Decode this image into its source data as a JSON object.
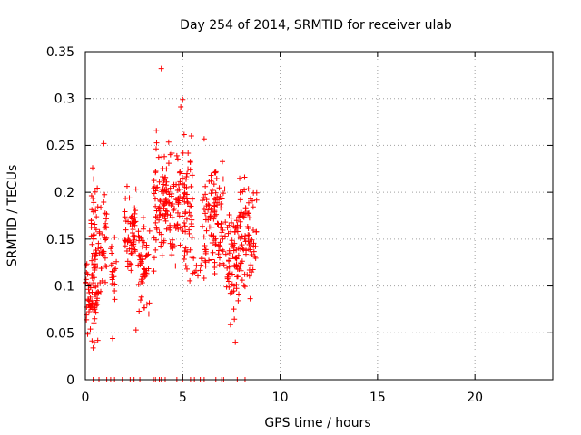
{
  "chart_data": {
    "type": "scatter",
    "title": "Day 254 of 2014, SRMTID for receiver ulab",
    "xlabel": "GPS time / hours",
    "ylabel": "SRMTID / TECUs",
    "xlim": [
      0,
      24
    ],
    "ylim": [
      0,
      0.35
    ],
    "xticks": [
      "0",
      "5",
      "10",
      "15",
      "20"
    ],
    "yticks": [
      "0",
      "0.05",
      "0.1",
      "0.15",
      "0.2",
      "0.25",
      "0.3",
      "0.35"
    ],
    "grid": true,
    "marker": "plus",
    "color": "#ff0000",
    "clusters": [
      {
        "x_start": 0.0,
        "x_end": 0.7,
        "y_min": 0.03,
        "y_max": 0.15,
        "n": 70
      },
      {
        "x_start": 0.3,
        "x_end": 1.1,
        "y_min": 0.05,
        "y_max": 0.25,
        "n": 70
      },
      {
        "x_start": 1.3,
        "x_end": 1.6,
        "y_min": 0.04,
        "y_max": 0.19,
        "n": 20
      },
      {
        "x_start": 2.0,
        "x_end": 2.6,
        "y_min": 0.09,
        "y_max": 0.22,
        "n": 60
      },
      {
        "x_start": 2.7,
        "x_end": 3.3,
        "y_min": 0.05,
        "y_max": 0.2,
        "n": 55
      },
      {
        "x_start": 3.5,
        "x_end": 4.3,
        "y_min": 0.1,
        "y_max": 0.28,
        "n": 90
      },
      {
        "x_start": 4.3,
        "x_end": 5.5,
        "y_min": 0.06,
        "y_max": 0.3,
        "n": 110
      },
      {
        "x_start": 5.5,
        "x_end": 6.0,
        "y_min": 0.08,
        "y_max": 0.15,
        "n": 10
      },
      {
        "x_start": 6.0,
        "x_end": 7.2,
        "y_min": 0.09,
        "y_max": 0.26,
        "n": 110
      },
      {
        "x_start": 7.2,
        "x_end": 7.9,
        "y_min": 0.04,
        "y_max": 0.21,
        "n": 70
      },
      {
        "x_start": 7.9,
        "x_end": 8.8,
        "y_min": 0.07,
        "y_max": 0.23,
        "n": 80
      }
    ],
    "outliers": [
      {
        "x": 3.9,
        "y": 0.332
      },
      {
        "x": 5.0,
        "y": 0.299
      },
      {
        "x": 4.9,
        "y": 0.291
      },
      {
        "x": 0.95,
        "y": 0.252
      },
      {
        "x": 6.1,
        "y": 0.257
      },
      {
        "x": 7.7,
        "y": 0.04
      },
      {
        "x": 1.4,
        "y": 0.044
      },
      {
        "x": 2.6,
        "y": 0.053
      },
      {
        "x": 0.4,
        "y": 0.034
      }
    ],
    "zero_markers": [
      0.4,
      0.7,
      1.1,
      1.3,
      1.5,
      1.9,
      2.3,
      2.5,
      2.8,
      3.5,
      3.6,
      3.8,
      3.9,
      4.1,
      4.7,
      5.0,
      5.4,
      5.6,
      5.9,
      6.1,
      6.7,
      7.0,
      7.1,
      7.8,
      8.2
    ]
  }
}
